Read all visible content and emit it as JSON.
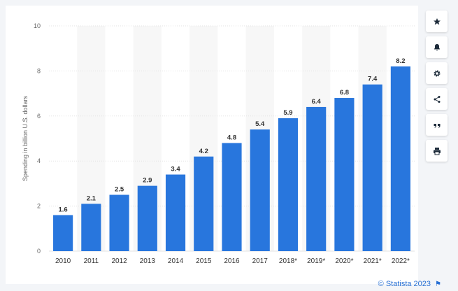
{
  "chart_data": {
    "type": "bar",
    "categories": [
      "2010",
      "2011",
      "2012",
      "2013",
      "2014",
      "2015",
      "2016",
      "2017",
      "2018*",
      "2019*",
      "2020*",
      "2021*",
      "2022*"
    ],
    "values": [
      1.6,
      2.1,
      2.5,
      2.9,
      3.4,
      4.2,
      4.8,
      5.4,
      5.9,
      6.4,
      6.8,
      7.4,
      8.2
    ],
    "value_labels": [
      "1.6",
      "2.1",
      "2.5",
      "2.9",
      "3.4",
      "4.2",
      "4.8",
      "5.4",
      "5.9",
      "6.4",
      "6.8",
      "7.4",
      "8.2"
    ],
    "ylabel": "Spending in billion U.S. dollars",
    "ylim": [
      0,
      10
    ],
    "yticks": [
      0,
      2,
      4,
      6,
      8,
      10
    ],
    "ytick_labels": [
      "0",
      "2",
      "4",
      "6",
      "8",
      "10"
    ],
    "grid": true,
    "bar_color": "#2876dd",
    "alt_band_color": "#f7f7f7"
  },
  "sidebar": {
    "buttons": [
      {
        "name": "star-icon"
      },
      {
        "name": "bell-icon"
      },
      {
        "name": "gear-icon"
      },
      {
        "name": "share-icon"
      },
      {
        "name": "quote-icon"
      },
      {
        "name": "print-icon"
      }
    ]
  },
  "credit": {
    "text": "© Statista 2023",
    "flag_icon": "flag-icon"
  }
}
